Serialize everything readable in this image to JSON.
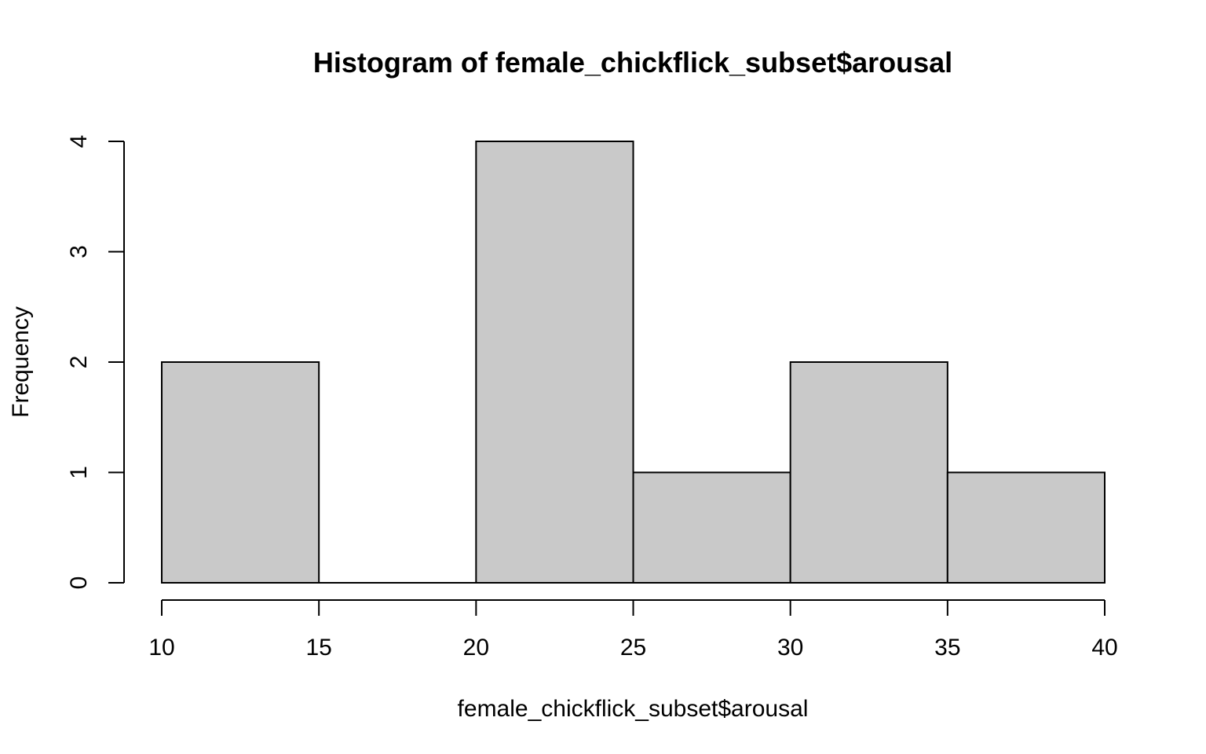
{
  "chart_data": {
    "type": "bar",
    "title": "Histogram of female_chickflick_subset$arousal",
    "xlabel": "female_chickflick_subset$arousal",
    "ylabel": "Frequency",
    "bins": [
      {
        "start": 10,
        "end": 15,
        "count": 2
      },
      {
        "start": 15,
        "end": 20,
        "count": 0
      },
      {
        "start": 20,
        "end": 25,
        "count": 4
      },
      {
        "start": 25,
        "end": 30,
        "count": 1
      },
      {
        "start": 30,
        "end": 35,
        "count": 2
      },
      {
        "start": 35,
        "end": 40,
        "count": 1
      }
    ],
    "xlim": [
      10,
      40
    ],
    "ylim": [
      0,
      4
    ],
    "x_ticks": [
      10,
      15,
      20,
      25,
      30,
      35,
      40
    ],
    "y_ticks": [
      0,
      1,
      2,
      3,
      4
    ],
    "grid": false,
    "bar_color": "#c9c9c9"
  }
}
